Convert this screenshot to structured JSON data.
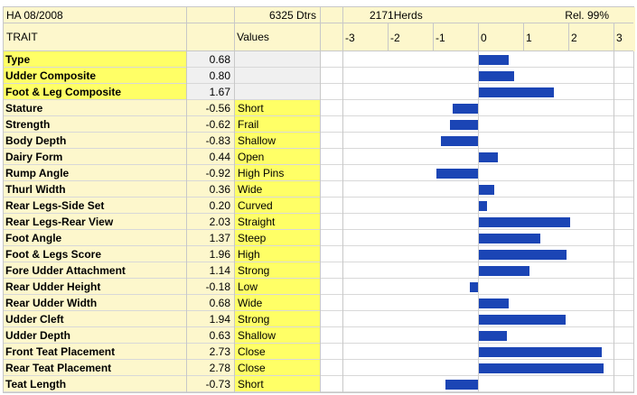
{
  "header": {
    "base": "HA 08/2008",
    "daughters": "6325 Dtrs",
    "herds": "2171Herds",
    "reliability": "Rel. 99%",
    "trait_label": "TRAIT",
    "values_label": "Values"
  },
  "colors": {
    "header_bg": "#fdf7cc",
    "trait_bg_yellow": "#ffff66",
    "trait_bg_light": "#fdf7cc",
    "value_bg_gray": "#f0f0f0",
    "value_bg_light": "#fdf7cc",
    "desc_bg": "#ffff66",
    "bar": "#1b45b5"
  },
  "chart_data": {
    "type": "bar",
    "orientation": "horizontal",
    "xlim": [
      -3,
      3
    ],
    "ticks": [
      "-3",
      "-2",
      "-1",
      "0",
      "1",
      "2",
      "3"
    ],
    "categories": [
      "Type",
      "Udder Composite",
      "Foot & Leg Composite",
      "Stature",
      "Strength",
      "Body Depth",
      "Dairy Form",
      "Rump Angle",
      "Thurl Width",
      "Rear Legs-Side Set",
      "Rear Legs-Rear View",
      "Foot Angle",
      "Foot & Legs Score",
      "Fore Udder Attachment",
      "Rear Udder Height",
      "Rear Udder Width",
      "Udder Cleft",
      "Udder Depth",
      "Front Teat Placement",
      "Rear Teat Placement",
      "Teat Length"
    ],
    "values": [
      0.68,
      0.8,
      1.67,
      -0.56,
      -0.62,
      -0.83,
      0.44,
      -0.92,
      0.36,
      0.2,
      2.03,
      1.37,
      1.96,
      1.14,
      -0.18,
      0.68,
      1.94,
      0.63,
      2.73,
      2.78,
      -0.73
    ],
    "value_labels": [
      "0.68",
      "0.80",
      "1.67",
      "-0.56",
      "-0.62",
      "-0.83",
      "0.44",
      "-0.92",
      "0.36",
      "0.20",
      "2.03",
      "1.37",
      "1.96",
      "1.14",
      "-0.18",
      "0.68",
      "1.94",
      "0.63",
      "2.73",
      "2.78",
      "-0.73"
    ],
    "descriptions": [
      "",
      "",
      "",
      "Short",
      "Frail",
      "Shallow",
      "Open",
      "High Pins",
      "Wide",
      "Curved",
      "Straight",
      "Steep",
      "High",
      "Strong",
      "Low",
      "Wide",
      "Strong",
      "Shallow",
      "Close",
      "Close",
      "Short"
    ],
    "grid": false
  }
}
